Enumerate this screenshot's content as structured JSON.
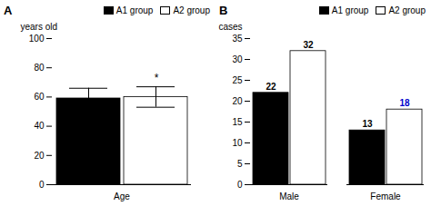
{
  "chart_data": [
    {
      "type": "bar",
      "title": "A",
      "categories": [
        "Age"
      ],
      "series": [
        {
          "name": "A1 group",
          "color": "black",
          "values": [
            59
          ],
          "errors": [
            7
          ]
        },
        {
          "name": "A2 group",
          "color": "white",
          "values": [
            60
          ],
          "errors": [
            7
          ]
        }
      ],
      "ylabel": "years old",
      "ylim": [
        0,
        100
      ],
      "yticks": [
        0,
        20,
        40,
        60,
        80,
        100
      ],
      "legend": "upper right",
      "annotations": [
        {
          "text": "*",
          "series": "A2 group",
          "category": "Age"
        }
      ]
    },
    {
      "type": "bar",
      "title": "B",
      "categories": [
        "Male",
        "Female"
      ],
      "series": [
        {
          "name": "A1 group",
          "color": "black",
          "values": [
            22,
            13
          ]
        },
        {
          "name": "A2 group",
          "color": "white",
          "values": [
            32,
            18
          ],
          "label_colors": [
            "black",
            "#0000cc"
          ]
        }
      ],
      "ylabel": "cases",
      "ylim": [
        0,
        35
      ],
      "yticks": [
        0,
        5,
        10,
        15,
        20,
        25,
        30,
        35
      ],
      "legend": "upper right",
      "data_labels": true
    }
  ]
}
